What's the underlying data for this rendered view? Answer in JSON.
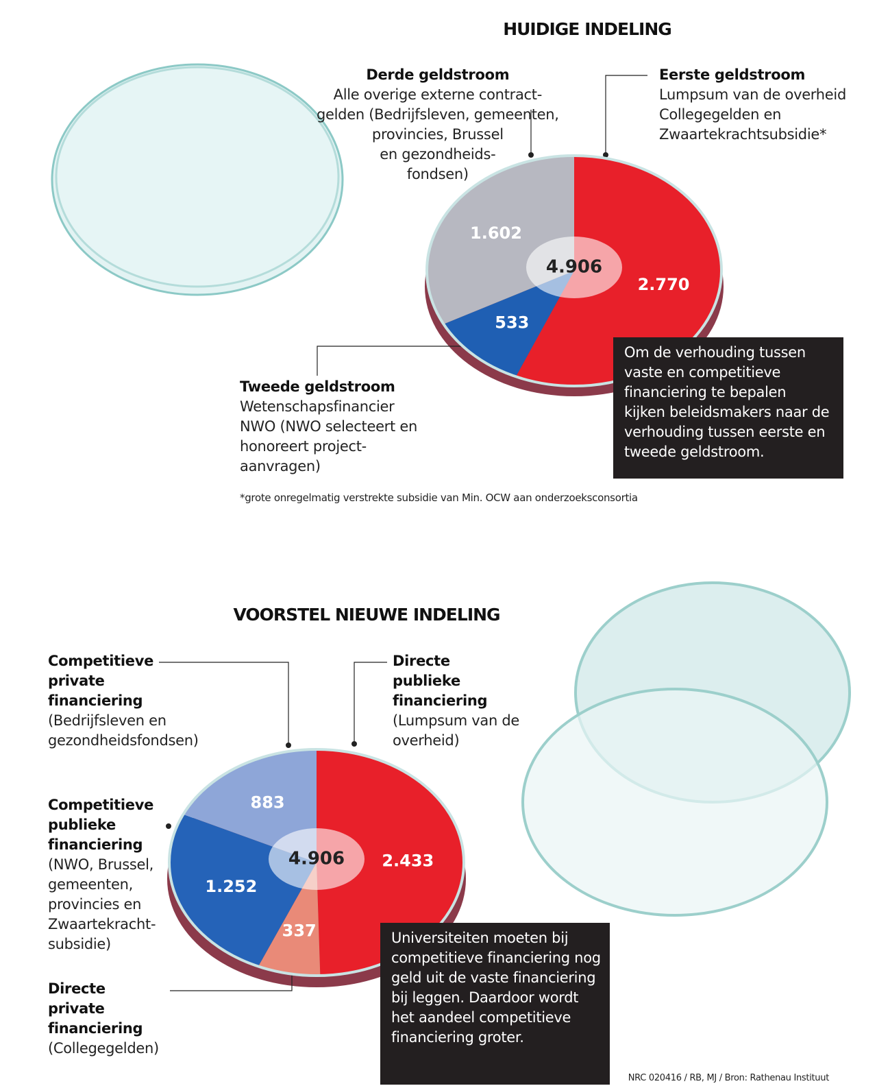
{
  "chart_data": [
    {
      "type": "pie",
      "title": "HUIDIGE INDELING",
      "categories": [
        "Eerste geldstroom",
        "Tweede geldstroom",
        "Derde geldstroom"
      ],
      "descriptions": [
        [
          "Lumpsum van de overheid",
          "Collegegelden en",
          "Zwaartekrachtsubsidie*"
        ],
        [
          "Wetenschapsfinancier",
          "NWO (NWO selecteert en",
          "honoreert project-",
          "aanvragen)"
        ],
        [
          "Alle overige externe contract-",
          "gelden (Bedrijfsleven, gemeenten,",
          "provincies, Brussel",
          "en gezondheids-",
          "fondsen)"
        ]
      ],
      "values": [
        2770,
        533,
        1602
      ],
      "value_labels": [
        "2.770",
        "533",
        "1.602"
      ],
      "colors": [
        "#e8202a",
        "#1f5fb3",
        "#b7b8c1"
      ],
      "total": {
        "value": 4906,
        "label": "4.906"
      },
      "note": [
        "Om de verhouding tussen",
        "vaste en competitieve",
        "financiering te bepalen",
        "kijken beleidsmakers naar de",
        "verhouding tussen eerste en",
        "tweede geldstroom."
      ],
      "footnote": "*grote onregelmatig verstrekte subsidie van Min. OCW aan onderzoeksconsortia"
    },
    {
      "type": "pie",
      "title": "VOORSTEL NIEUWE INDELING",
      "categories": [
        "Directe publieke financiering",
        "Directe private financiering",
        "Competitieve publieke financiering",
        "Competitieve private financiering"
      ],
      "descriptions": [
        [
          "(Lumpsum van de",
          "overheid)"
        ],
        [
          "(Collegegelden)"
        ],
        [
          "(NWO, Brussel,",
          "gemeenten,",
          "provincies en",
          "Zwaartekracht-",
          "subsidie)"
        ],
        [
          "(Bedrijfsleven en",
          "gezondheidsfondsen)"
        ]
      ],
      "values": [
        2433,
        337,
        1252,
        883
      ],
      "value_labels": [
        "2.433",
        "337",
        "1.252",
        "883"
      ],
      "colors": [
        "#e8202a",
        "#e98a78",
        "#2563b8",
        "#8ea6d8"
      ],
      "total": {
        "value": 4906,
        "label": "4.906"
      },
      "note": [
        "Universiteiten moeten bij",
        "competitieve financiering nog",
        "geld uit de vaste financiering",
        "bij leggen. Daardoor wordt",
        "het aandeel competitieve",
        "financiering groter."
      ]
    }
  ],
  "source": "NRC 020416 / RB, MJ / Bron: Rathenau Instituut"
}
